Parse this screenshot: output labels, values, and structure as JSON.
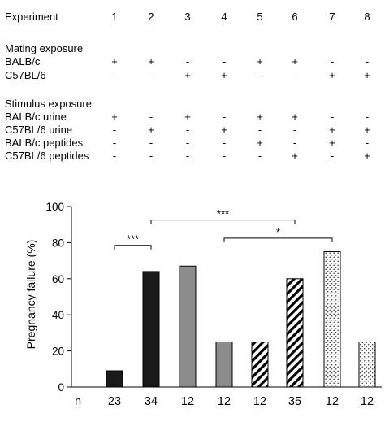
{
  "design": {
    "header_label": "Experiment",
    "experiments": [
      "1",
      "2",
      "3",
      "4",
      "5",
      "6",
      "7",
      "8"
    ],
    "groups": [
      {
        "title": "Mating exposure",
        "rows": [
          {
            "label": "BALB/c",
            "marks": [
              "+",
              "+",
              "-",
              "-",
              "+",
              "+",
              "-",
              "-"
            ]
          },
          {
            "label": "C57BL/6",
            "marks": [
              "-",
              "-",
              "+",
              "+",
              "-",
              "-",
              "+",
              "+"
            ]
          }
        ]
      },
      {
        "title": "Stimulus exposure",
        "rows": [
          {
            "label": "BALB/c urine",
            "marks": [
              "+",
              "-",
              "+",
              "-",
              "+",
              "+",
              "-",
              "-"
            ]
          },
          {
            "label": "C57BL/6 urine",
            "marks": [
              "-",
              "+",
              "-",
              "+",
              "-",
              "-",
              "+",
              "+"
            ]
          },
          {
            "label": "BALB/c peptides",
            "marks": [
              "-",
              "-",
              "-",
              "-",
              "+",
              "-",
              "+",
              "-"
            ]
          },
          {
            "label": "C57BL/6 peptides",
            "marks": [
              "-",
              "-",
              "-",
              "-",
              "-",
              "+",
              "-",
              "+"
            ]
          }
        ]
      }
    ]
  },
  "chart_data": {
    "type": "bar",
    "categories": [
      "1",
      "2",
      "3",
      "4",
      "5",
      "6",
      "7",
      "8"
    ],
    "values": [
      9,
      64,
      67,
      25,
      25,
      60,
      75,
      25
    ],
    "ylabel": "Pregnancy failure (%)",
    "ylim": [
      0,
      100
    ],
    "yticks": [
      "0",
      "20",
      "40",
      "60",
      "80",
      "100"
    ],
    "n_label": "n",
    "n_values": [
      "23",
      "34",
      "12",
      "12",
      "12",
      "35",
      "12",
      "12"
    ],
    "fills": [
      "black",
      "black",
      "gray",
      "gray",
      "hatch",
      "hatch",
      "dots",
      "dots"
    ],
    "colors": {
      "black": "#1a1a1a",
      "gray": "#8c8c8c"
    },
    "significance": [
      {
        "from": 2,
        "to": 6,
        "label": "***"
      },
      {
        "from": 1,
        "to": 2,
        "label": "***"
      },
      {
        "from": 4,
        "to": 7,
        "label": "*"
      }
    ],
    "grid": false
  }
}
